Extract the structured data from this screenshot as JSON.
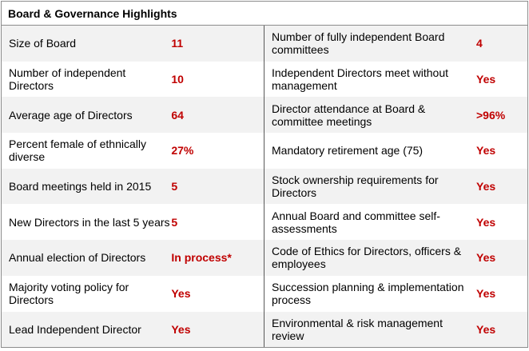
{
  "title": "Board & Governance Highlights",
  "left_rows": [
    {
      "label": "Size of Board",
      "value": "11"
    },
    {
      "label": "Number of independent Directors",
      "value": "10"
    },
    {
      "label": "Average age of Directors",
      "value": "64"
    },
    {
      "label": "Percent female of ethnically diverse",
      "value": "27%"
    },
    {
      "label": "Board meetings held in 2015",
      "value": "5"
    },
    {
      "label": "New Directors in the last 5 years",
      "value": "5"
    },
    {
      "label": "Annual election of Directors",
      "value": "In process*"
    },
    {
      "label": "Majority voting policy for Directors",
      "value": "Yes"
    },
    {
      "label": "Lead Independent Director",
      "value": "Yes"
    }
  ],
  "right_rows": [
    {
      "label": "Number of fully independent Board committees",
      "value": "4"
    },
    {
      "label": "Independent Directors meet without management",
      "value": "Yes"
    },
    {
      "label": "Director attendance at Board & committee meetings",
      "value": ">96%"
    },
    {
      "label": "Mandatory retirement age (75)",
      "value": "Yes"
    },
    {
      "label": "Stock ownership requirements for Directors",
      "value": "Yes"
    },
    {
      "label": "Annual Board and committee self-assessments",
      "value": "Yes"
    },
    {
      "label": "Code of Ethics for Directors, officers & employees",
      "value": "Yes"
    },
    {
      "label": "Succession planning & implementation process",
      "value": "Yes"
    },
    {
      "label": "Environmental & risk management review",
      "value": "Yes"
    }
  ],
  "colors": {
    "value_text": "#c00000",
    "shade": "#f2f2f2",
    "border": "#8c8c8c"
  }
}
